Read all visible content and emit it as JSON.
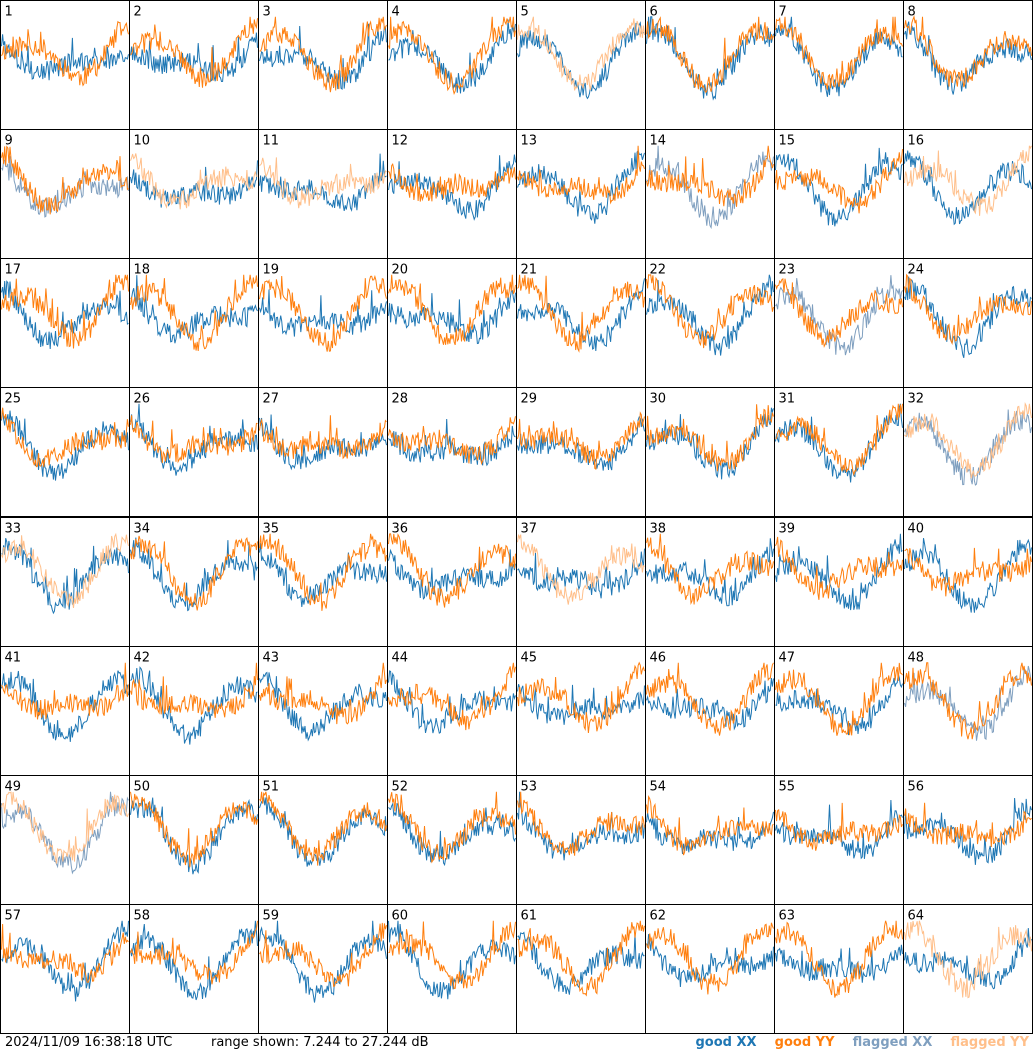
{
  "footer": {
    "timestamp": "2024/11/09 16:38:18 UTC",
    "range": "range shown: 7.244 to 27.244 dB"
  },
  "legend": [
    {
      "label": "good XX",
      "color": "#1f77b4"
    },
    {
      "label": "good YY",
      "color": "#ff7f0e"
    },
    {
      "label": "flagged XX",
      "color": "#7f9fbf"
    },
    {
      "label": "flagged YY",
      "color": "#ffbf8a"
    }
  ],
  "chart_data": {
    "type": "line",
    "ylim": [
      7.244,
      27.244
    ],
    "ylabel_units": "dB",
    "panels": [
      {
        "id": "1",
        "xx": "good",
        "yy": "good"
      },
      {
        "id": "2",
        "xx": "good",
        "yy": "good"
      },
      {
        "id": "3",
        "xx": "good",
        "yy": "good"
      },
      {
        "id": "4",
        "xx": "good",
        "yy": "good"
      },
      {
        "id": "5",
        "xx": "good",
        "yy": "flagged"
      },
      {
        "id": "6",
        "xx": "good",
        "yy": "good"
      },
      {
        "id": "7",
        "xx": "good",
        "yy": "good"
      },
      {
        "id": "8",
        "xx": "good",
        "yy": "good"
      },
      {
        "id": "9",
        "xx": "flagged",
        "yy": "good"
      },
      {
        "id": "10",
        "xx": "good",
        "yy": "flagged"
      },
      {
        "id": "11",
        "xx": "good",
        "yy": "flagged"
      },
      {
        "id": "12",
        "xx": "good",
        "yy": "good"
      },
      {
        "id": "13",
        "xx": "good",
        "yy": "good"
      },
      {
        "id": "14",
        "xx": "flagged",
        "yy": "good"
      },
      {
        "id": "15",
        "xx": "good",
        "yy": "good"
      },
      {
        "id": "16",
        "xx": "good",
        "yy": "flagged"
      },
      {
        "id": "17",
        "xx": "good",
        "yy": "good"
      },
      {
        "id": "18",
        "xx": "good",
        "yy": "good"
      },
      {
        "id": "19",
        "xx": "good",
        "yy": "good"
      },
      {
        "id": "20",
        "xx": "good",
        "yy": "good"
      },
      {
        "id": "21",
        "xx": "good",
        "yy": "good"
      },
      {
        "id": "22",
        "xx": "good",
        "yy": "good"
      },
      {
        "id": "23",
        "xx": "flagged",
        "yy": "good"
      },
      {
        "id": "24",
        "xx": "good",
        "yy": "good"
      },
      {
        "id": "25",
        "xx": "good",
        "yy": "good"
      },
      {
        "id": "26",
        "xx": "good",
        "yy": "good"
      },
      {
        "id": "27",
        "xx": "good",
        "yy": "good"
      },
      {
        "id": "28",
        "xx": "good",
        "yy": "good"
      },
      {
        "id": "29",
        "xx": "good",
        "yy": "good"
      },
      {
        "id": "30",
        "xx": "good",
        "yy": "good"
      },
      {
        "id": "31",
        "xx": "good",
        "yy": "good"
      },
      {
        "id": "32",
        "xx": "flagged",
        "yy": "flagged"
      },
      {
        "id": "33",
        "xx": "good",
        "yy": "flagged"
      },
      {
        "id": "34",
        "xx": "good",
        "yy": "good"
      },
      {
        "id": "35",
        "xx": "good",
        "yy": "good"
      },
      {
        "id": "36",
        "xx": "good",
        "yy": "good"
      },
      {
        "id": "37",
        "xx": "good",
        "yy": "flagged"
      },
      {
        "id": "38",
        "xx": "good",
        "yy": "good"
      },
      {
        "id": "39",
        "xx": "good",
        "yy": "good"
      },
      {
        "id": "40",
        "xx": "good",
        "yy": "good"
      },
      {
        "id": "41",
        "xx": "good",
        "yy": "good"
      },
      {
        "id": "42",
        "xx": "good",
        "yy": "good"
      },
      {
        "id": "43",
        "xx": "good",
        "yy": "good"
      },
      {
        "id": "44",
        "xx": "good",
        "yy": "good"
      },
      {
        "id": "45",
        "xx": "good",
        "yy": "good"
      },
      {
        "id": "46",
        "xx": "good",
        "yy": "good"
      },
      {
        "id": "47",
        "xx": "good",
        "yy": "good"
      },
      {
        "id": "48",
        "xx": "flagged",
        "yy": "good"
      },
      {
        "id": "49",
        "xx": "flagged",
        "yy": "flagged"
      },
      {
        "id": "50",
        "xx": "good",
        "yy": "good"
      },
      {
        "id": "51",
        "xx": "good",
        "yy": "good"
      },
      {
        "id": "52",
        "xx": "good",
        "yy": "good"
      },
      {
        "id": "53",
        "xx": "good",
        "yy": "good"
      },
      {
        "id": "54",
        "xx": "good",
        "yy": "good"
      },
      {
        "id": "55",
        "xx": "good",
        "yy": "good"
      },
      {
        "id": "56",
        "xx": "good",
        "yy": "good"
      },
      {
        "id": "57",
        "xx": "good",
        "yy": "good"
      },
      {
        "id": "58",
        "xx": "good",
        "yy": "good"
      },
      {
        "id": "59",
        "xx": "good",
        "yy": "good"
      },
      {
        "id": "60",
        "xx": "good",
        "yy": "good"
      },
      {
        "id": "61",
        "xx": "good",
        "yy": "good"
      },
      {
        "id": "62",
        "xx": "good",
        "yy": "good"
      },
      {
        "id": "63",
        "xx": "good",
        "yy": "good"
      },
      {
        "id": "64",
        "xx": "good",
        "yy": "flagged"
      }
    ]
  }
}
